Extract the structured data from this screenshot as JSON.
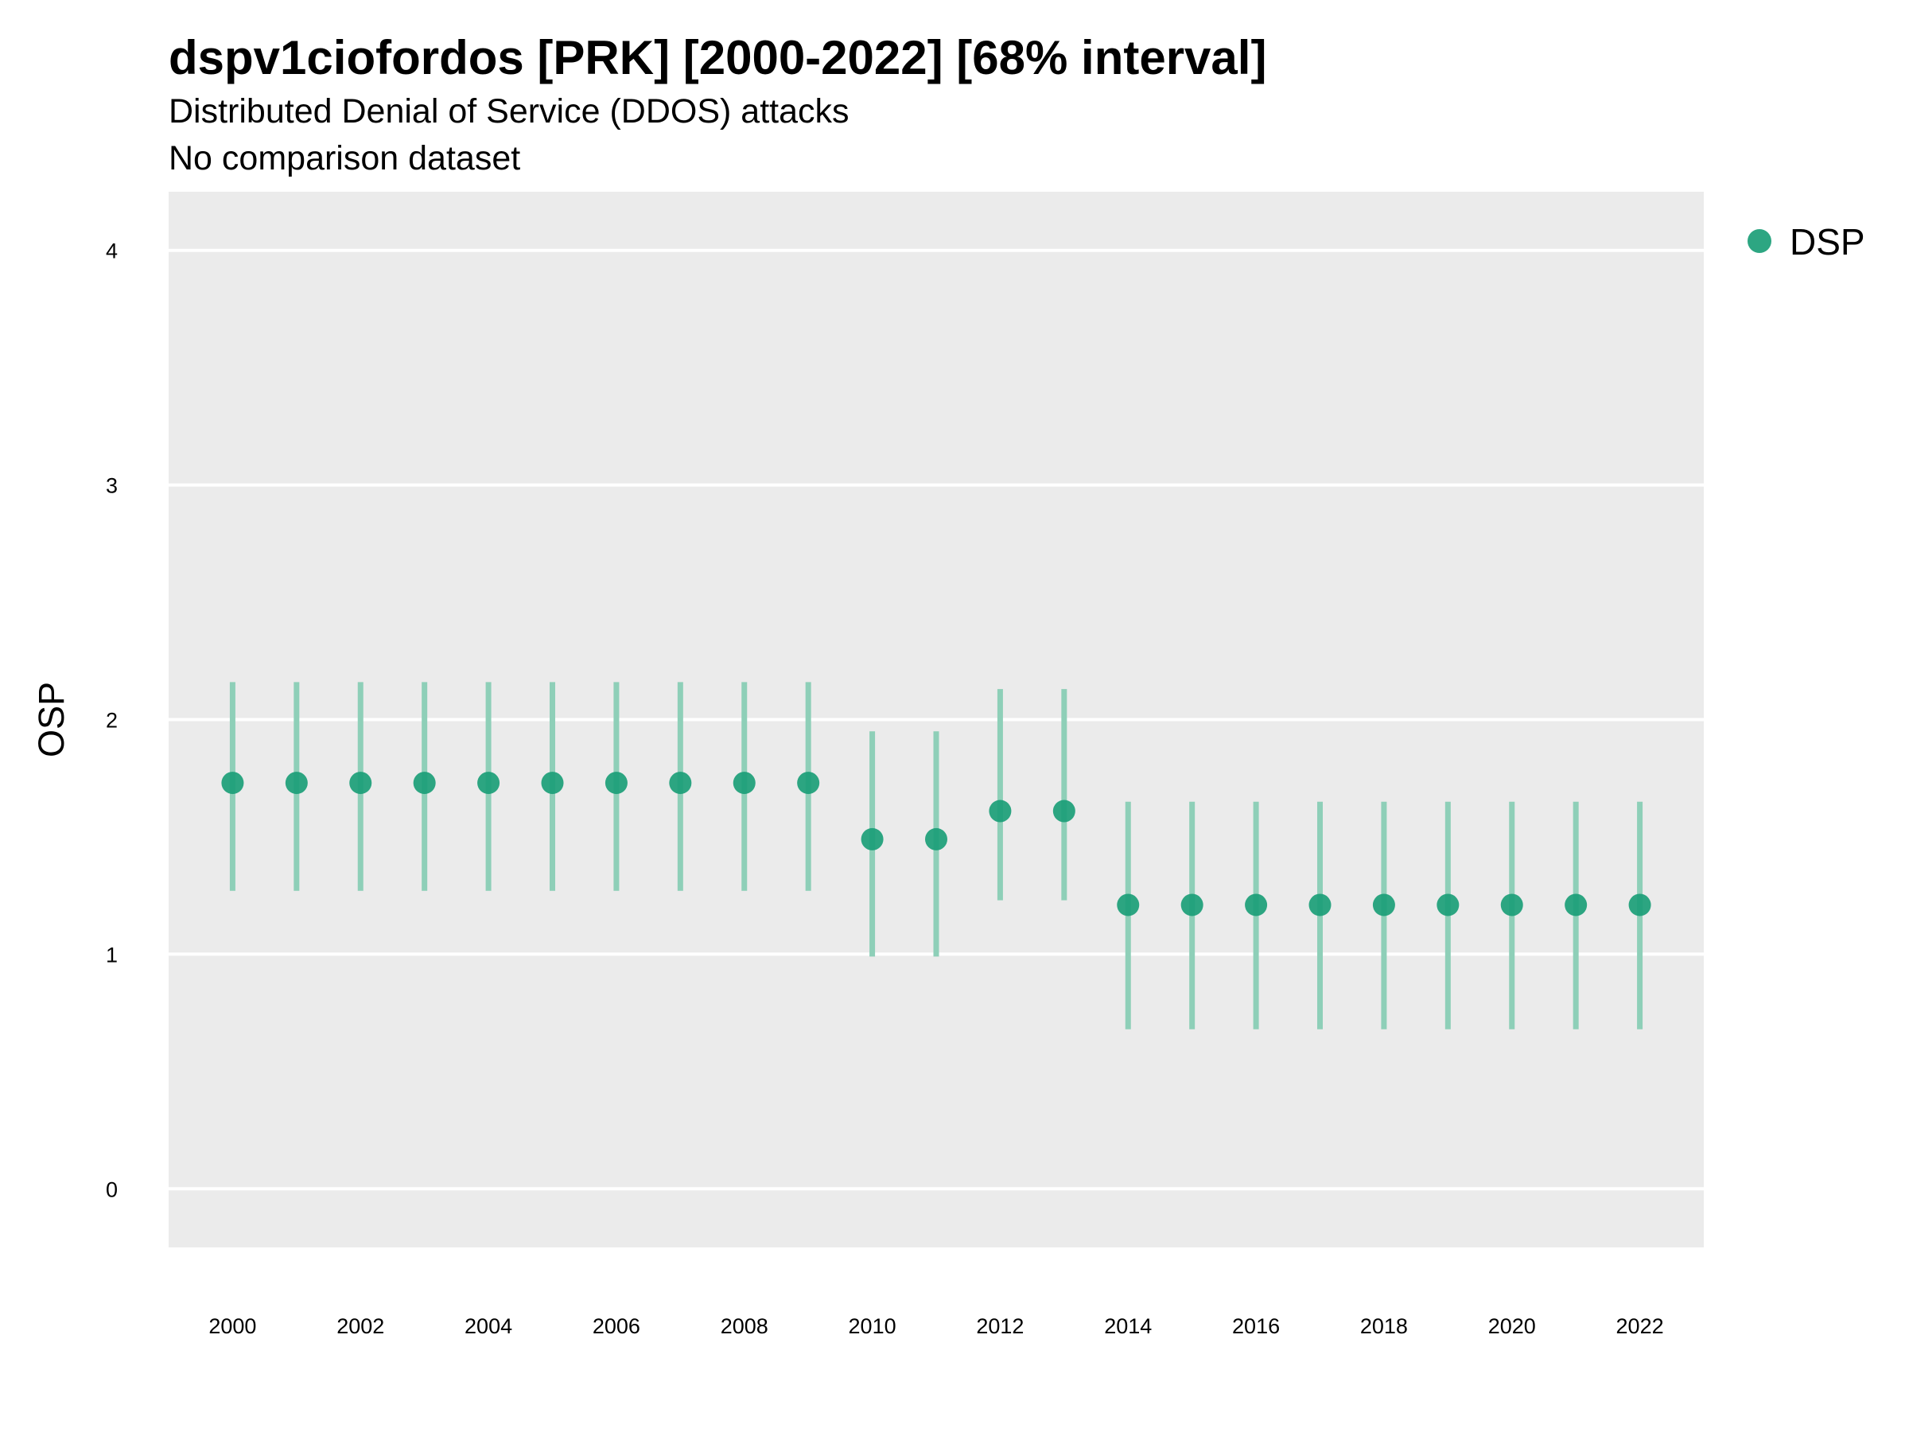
{
  "title": "dspv1ciofordos [PRK] [2000-2022] [68% interval]",
  "subtitle": "Distributed Denial of Service (DDOS) attacks",
  "subtitle2": "No comparison dataset",
  "colors": {
    "point": "#1b9e77",
    "interval": "#8ecfb8",
    "panel": "#ebebeb",
    "grid": "#ffffff"
  },
  "chart_data": {
    "type": "scatter",
    "ylabel": "OSP",
    "xlabel": "",
    "ylim": [
      -0.25,
      4.25
    ],
    "yticks": [
      0,
      1,
      2,
      3,
      4
    ],
    "xlim": [
      1999,
      2023
    ],
    "xticks": [
      2000,
      2002,
      2004,
      2006,
      2008,
      2010,
      2012,
      2014,
      2016,
      2018,
      2020,
      2022
    ],
    "grid": true,
    "legend_position": "right",
    "series": [
      {
        "name": "DSP",
        "x": [
          2000,
          2001,
          2002,
          2003,
          2004,
          2005,
          2006,
          2007,
          2008,
          2009,
          2010,
          2011,
          2012,
          2013,
          2014,
          2015,
          2016,
          2017,
          2018,
          2019,
          2020,
          2021,
          2022
        ],
        "y": [
          1.73,
          1.73,
          1.73,
          1.73,
          1.73,
          1.73,
          1.73,
          1.73,
          1.73,
          1.73,
          1.49,
          1.49,
          1.61,
          1.61,
          1.21,
          1.21,
          1.21,
          1.21,
          1.21,
          1.21,
          1.21,
          1.21,
          1.21
        ],
        "lower": [
          1.27,
          1.27,
          1.27,
          1.27,
          1.27,
          1.27,
          1.27,
          1.27,
          1.27,
          1.27,
          0.99,
          0.99,
          1.23,
          1.23,
          0.68,
          0.68,
          0.68,
          0.68,
          0.68,
          0.68,
          0.68,
          0.68,
          0.68
        ],
        "upper": [
          2.16,
          2.16,
          2.16,
          2.16,
          2.16,
          2.16,
          2.16,
          2.16,
          2.16,
          2.16,
          1.95,
          1.95,
          2.13,
          2.13,
          1.65,
          1.65,
          1.65,
          1.65,
          1.65,
          1.65,
          1.65,
          1.65,
          1.65
        ]
      }
    ]
  }
}
